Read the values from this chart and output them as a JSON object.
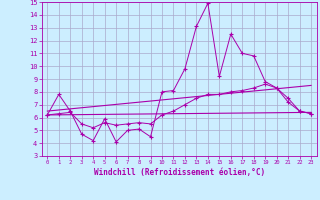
{
  "xlabel": "Windchill (Refroidissement éolien,°C)",
  "background_color": "#cceeff",
  "grid_color": "#aaaacc",
  "line_color": "#aa00aa",
  "xlim": [
    -0.5,
    23.5
  ],
  "ylim": [
    3,
    15
  ],
  "xticks": [
    0,
    1,
    2,
    3,
    4,
    5,
    6,
    7,
    8,
    9,
    10,
    11,
    12,
    13,
    14,
    15,
    16,
    17,
    18,
    19,
    20,
    21,
    22,
    23
  ],
  "yticks": [
    3,
    4,
    5,
    6,
    7,
    8,
    9,
    10,
    11,
    12,
    13,
    14,
    15
  ],
  "series1_x": [
    0,
    1,
    2,
    3,
    4,
    5,
    6,
    7,
    8,
    9,
    10,
    11,
    12,
    13,
    14,
    15,
    16,
    17,
    18,
    19,
    20,
    21,
    22,
    23
  ],
  "series1_y": [
    6.2,
    7.8,
    6.5,
    4.7,
    4.2,
    5.9,
    4.1,
    5.0,
    5.1,
    4.5,
    8.0,
    8.1,
    9.8,
    13.1,
    14.9,
    9.2,
    12.5,
    11.0,
    10.8,
    8.8,
    8.3,
    7.2,
    6.5,
    6.3
  ],
  "series2_x": [
    0,
    23
  ],
  "series2_y": [
    6.5,
    8.5
  ],
  "series3_x": [
    0,
    23
  ],
  "series3_y": [
    6.2,
    6.4
  ],
  "series4_x": [
    0,
    1,
    2,
    3,
    4,
    5,
    6,
    7,
    8,
    9,
    10,
    11,
    12,
    13,
    14,
    15,
    16,
    17,
    18,
    19,
    20,
    21,
    22,
    23
  ],
  "series4_y": [
    6.2,
    6.3,
    6.4,
    5.5,
    5.2,
    5.6,
    5.4,
    5.5,
    5.6,
    5.5,
    6.2,
    6.5,
    7.0,
    7.5,
    7.8,
    7.8,
    8.0,
    8.1,
    8.3,
    8.6,
    8.3,
    7.5,
    6.5,
    6.3
  ]
}
